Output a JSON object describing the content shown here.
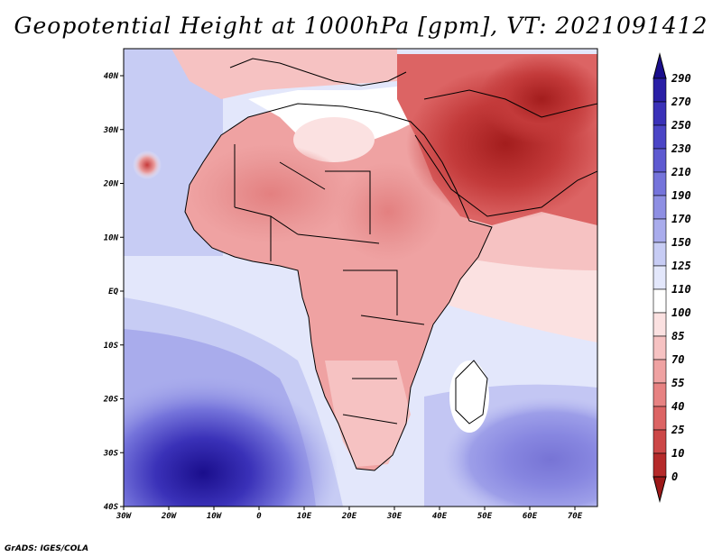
{
  "title": "Geopotential Height at 1000hPa [gpm], VT: 2021091412",
  "credit": "GrADS: IGES/COLA",
  "map": {
    "lon_labels": [
      "30W",
      "20W",
      "10W",
      "0",
      "10E",
      "20E",
      "30E",
      "40E",
      "50E",
      "60E",
      "70E"
    ],
    "lat_labels": [
      "40N",
      "30N",
      "20N",
      "10N",
      "EQ",
      "10S",
      "20S",
      "30S",
      "40S"
    ],
    "lon_range": [
      -30,
      75
    ],
    "lat_range": [
      -40,
      45
    ]
  },
  "colorbar": {
    "labels": [
      "290",
      "270",
      "250",
      "230",
      "210",
      "190",
      "170",
      "150",
      "125",
      "110",
      "100",
      "85",
      "70",
      "55",
      "40",
      "25",
      "10",
      "0"
    ],
    "colors": [
      "#1a0e8c",
      "#2a1fa6",
      "#3a31b8",
      "#4b45c6",
      "#5e5ad1",
      "#7574db",
      "#8e8fe3",
      "#a9acec",
      "#c7ccf4",
      "#e3e7fb",
      "#ffffff",
      "#fbe1e1",
      "#f6c2c2",
      "#efa2a2",
      "#e78282",
      "#dc6464",
      "#cc4747",
      "#b52a2a",
      "#9c1818"
    ]
  },
  "colors": {
    "low": "#9c1818",
    "high": "#1a0e8c"
  }
}
